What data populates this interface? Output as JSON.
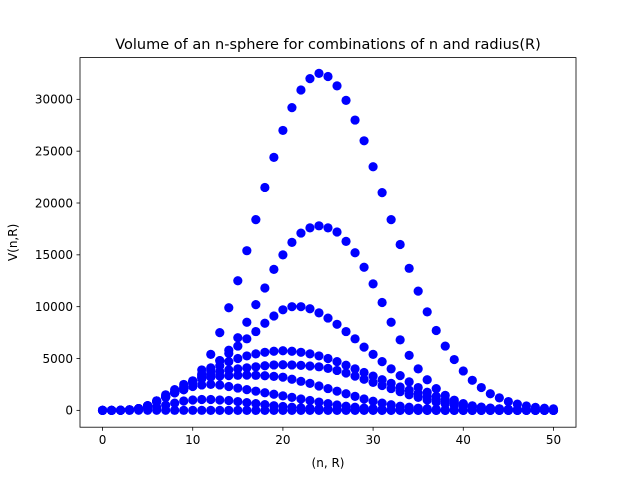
{
  "chart_data": {
    "type": "scatter",
    "title": "Volume of an n-sphere for combinations of n and radius(R)",
    "xlabel": "(n, R)",
    "ylabel": "V(n,R)",
    "xlim": [
      -2.5,
      52.5
    ],
    "ylim": [
      -1625,
      34025
    ],
    "xticks": [
      0,
      10,
      20,
      30,
      40,
      50
    ],
    "yticks": [
      0,
      5000,
      10000,
      15000,
      20000,
      25000,
      30000
    ],
    "grid": false,
    "legend": "none",
    "marker_color": "#0000ff",
    "x": [
      0,
      1,
      2,
      3,
      4,
      5,
      6,
      7,
      8,
      9,
      10,
      11,
      12,
      13,
      14,
      15,
      16,
      17,
      18,
      19,
      20,
      21,
      22,
      23,
      24,
      25,
      26,
      27,
      28,
      29,
      30,
      31,
      32,
      33,
      34,
      35,
      36,
      37,
      38,
      39,
      40,
      41,
      42,
      43,
      44,
      45,
      46,
      47,
      48,
      49,
      50
    ],
    "series": [
      {
        "values": [
          1,
          2,
          12.6,
          52,
          170,
          420,
          800,
          1250,
          1700,
          2100,
          2300,
          2450,
          2500,
          2450,
          2300,
          2150,
          2000,
          1850,
          1700,
          1550,
          1400,
          1250,
          1100,
          950,
          800,
          650,
          520,
          400,
          300,
          220,
          160,
          110,
          75,
          50,
          32,
          20,
          12,
          8,
          5,
          3,
          2,
          1,
          1,
          0,
          0,
          0,
          0,
          0,
          0,
          0,
          0
        ]
      },
      {
        "values": [
          1,
          2,
          12.6,
          52,
          170,
          430,
          900,
          1500,
          2000,
          2500,
          2850,
          3050,
          3200,
          3300,
          3350,
          3380,
          3400,
          3380,
          3340,
          3280,
          3200,
          3000,
          2800,
          2600,
          2350,
          2100,
          1850,
          1600,
          1350,
          1100,
          880,
          700,
          540,
          400,
          300,
          210,
          150,
          100,
          65,
          42,
          26,
          16,
          10,
          6,
          3,
          2,
          1,
          1,
          0,
          0,
          0
        ]
      },
      {
        "values": [
          1,
          2,
          12.6,
          52,
          170,
          450,
          900,
          1400,
          1800,
          2300,
          2800,
          3200,
          3500,
          3750,
          3900,
          4000,
          4100,
          4200,
          4300,
          4380,
          4400,
          4380,
          4340,
          4280,
          4200,
          4050,
          3850,
          3600,
          3300,
          3000,
          2700,
          2400,
          2100,
          1800,
          1500,
          1250,
          1000,
          800,
          620,
          470,
          350,
          250,
          180,
          120,
          80,
          52,
          33,
          20,
          12,
          7,
          4
        ]
      },
      {
        "values": [
          1,
          2,
          12.6,
          52,
          170,
          450,
          900,
          1300,
          1700,
          2100,
          2600,
          3200,
          3800,
          4300,
          4700,
          5000,
          5250,
          5450,
          5600,
          5700,
          5750,
          5700,
          5600,
          5450,
          5250,
          5000,
          4700,
          4350,
          4000,
          3650,
          3300,
          2950,
          2600,
          2250,
          1950,
          1650,
          1350,
          1100,
          880,
          680,
          520,
          390,
          290,
          210,
          150,
          100,
          68,
          45,
          29,
          18,
          11
        ]
      },
      {
        "values": [
          1,
          2,
          12.6,
          52,
          170,
          450,
          900,
          1300,
          1700,
          2000,
          2700,
          3400,
          4100,
          4800,
          5500,
          6200,
          6900,
          7600,
          8400,
          9100,
          9700,
          10000,
          10000,
          9800,
          9400,
          8900,
          8300,
          7600,
          6900,
          6100,
          5400,
          4700,
          4000,
          3350,
          2750,
          2200,
          1750,
          1350,
          1050,
          790,
          590,
          430,
          310,
          220,
          150,
          100,
          70,
          46,
          30,
          19,
          12
        ]
      },
      {
        "values": [
          1,
          2,
          12.6,
          52,
          170,
          450,
          900,
          1300,
          1700,
          2000,
          2800,
          3500,
          4000,
          4800,
          5800,
          7000,
          8500,
          10200,
          11800,
          13600,
          15000,
          16200,
          17100,
          17600,
          17800,
          17600,
          17200,
          16300,
          15200,
          13800,
          12200,
          10400,
          8500,
          6800,
          5300,
          4000,
          2950,
          2100,
          1450,
          980,
          650,
          420,
          270,
          170,
          100,
          60,
          36,
          21,
          12,
          7,
          4
        ]
      },
      {
        "values": [
          1,
          2,
          12.6,
          52,
          170,
          450,
          900,
          1300,
          1700,
          2000,
          2800,
          3900,
          5400,
          7500,
          9900,
          12500,
          15400,
          18400,
          21500,
          24400,
          27000,
          29200,
          30900,
          32000,
          32500,
          32200,
          31300,
          29900,
          28000,
          26000,
          23500,
          21000,
          18400,
          16000,
          13700,
          11500,
          9500,
          7700,
          6200,
          4900,
          3800,
          2900,
          2200,
          1600,
          1200,
          850,
          600,
          420,
          290,
          200,
          140
        ]
      },
      {
        "values": [
          1,
          1.5,
          6,
          20,
          60,
          150,
          300,
          500,
          700,
          900,
          1000,
          1050,
          1050,
          1000,
          950,
          850,
          750,
          650,
          550,
          450,
          370,
          300,
          240,
          190,
          150,
          110,
          80,
          60,
          42,
          30,
          21,
          14,
          9,
          6,
          4,
          2.5,
          1.5,
          1,
          0.6,
          0.4,
          0.2,
          0.1,
          0.1,
          0,
          0,
          0,
          0,
          0,
          0,
          0,
          0
        ]
      },
      {
        "values": [
          1,
          1,
          3.1,
          4.2,
          4.9,
          5.3,
          5.2,
          4.7,
          4.1,
          3.3,
          2.6,
          1.9,
          1.3,
          0.9,
          0.6,
          0.4,
          0.2,
          0.1,
          0.1,
          0,
          0,
          0,
          0,
          0,
          0,
          0,
          0,
          0,
          0,
          0,
          0,
          0,
          0,
          0,
          0,
          0,
          0,
          0,
          0,
          0,
          0,
          0,
          0,
          0,
          0,
          0,
          0,
          0,
          0,
          0,
          0
        ]
      }
    ]
  }
}
